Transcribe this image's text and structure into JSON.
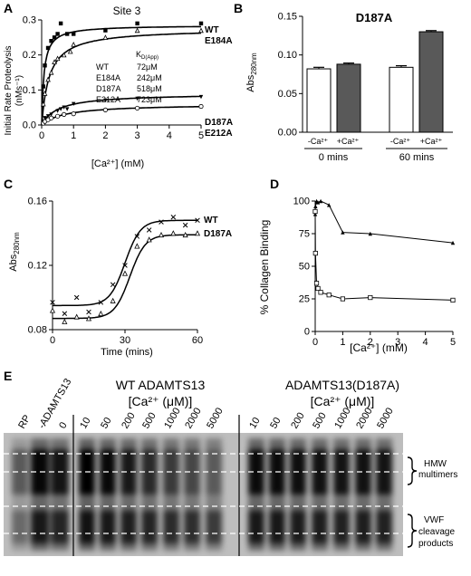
{
  "panels": {
    "A": {
      "label": "A",
      "title": "Site 3",
      "ylabel": "Initial Rate Proteolysis",
      "ylabel2": "(nMs⁻¹)",
      "xlabel": "[Ca²⁺] (mM)",
      "kd_header": "K",
      "kd_header_sub": "D(App)",
      "kd_table": [
        {
          "name": "WT",
          "value": "72μM"
        },
        {
          "name": "E184A",
          "value": "242μM"
        },
        {
          "name": "D187A",
          "value": "518μM"
        },
        {
          "name": "E212A",
          "value": "723μM"
        }
      ],
      "curve_labels": [
        "WT",
        "E184A",
        "D187A",
        "E212A"
      ]
    },
    "B": {
      "label": "B",
      "title": "D187A",
      "ylabel": "Abs",
      "ylabel_sub": "280nm",
      "cond_minus": "-Ca²⁺",
      "cond_plus": "+Ca²⁺",
      "groups": [
        "0 mins",
        "60 mins"
      ]
    },
    "C": {
      "label": "C",
      "ylabel": "Abs",
      "ylabel_sub": "280nm",
      "xlabel": "Time (mins)",
      "legend": [
        "WT",
        "D187A"
      ]
    },
    "D": {
      "label": "D",
      "ylabel": "% Collagen Binding",
      "xlabel": "[Ca²⁺] (mM)"
    },
    "E": {
      "label": "E",
      "lane_rp": "RP",
      "lane_minus": "-ADAMTS13",
      "lane_zero": "0",
      "wt_title": "WT ADAMTS13",
      "wt_sub": "[Ca²⁺ (μM)]",
      "mut_title": "ADAMTS13(D187A)",
      "mut_sub": "[Ca²⁺ (μM)]",
      "concentrations": [
        "10",
        "50",
        "200",
        "500",
        "1000",
        "2000",
        "5000"
      ],
      "hmw": [
        "HMW",
        "multimers"
      ],
      "cleavage": [
        "VWF",
        "cleavage",
        "products"
      ]
    }
  },
  "chart_data": [
    {
      "panel": "A",
      "type": "scatter",
      "title": "Site 3",
      "xlabel": "[Ca²⁺] (mM)",
      "ylabel": "Initial Rate Proteolysis (nMs⁻¹)",
      "xlim": [
        0,
        5
      ],
      "ylim": [
        0,
        0.3
      ],
      "xticks": [
        0,
        1,
        2,
        3,
        4,
        5
      ],
      "yticks": [
        0.0,
        0.1,
        0.2,
        0.3
      ],
      "series": [
        {
          "name": "WT",
          "marker": "square",
          "vmax": 0.285,
          "kd": 0.072,
          "x": [
            0.05,
            0.1,
            0.2,
            0.3,
            0.4,
            0.5,
            0.6,
            0.8,
            1.0,
            2.0,
            3.0,
            5.0
          ],
          "y": [
            0.11,
            0.17,
            0.22,
            0.24,
            0.25,
            0.26,
            0.29,
            0.26,
            0.26,
            0.27,
            0.29,
            0.29
          ]
        },
        {
          "name": "E184A",
          "marker": "triangle-open",
          "vmax": 0.275,
          "kd": 0.242,
          "x": [
            0.05,
            0.1,
            0.2,
            0.3,
            0.4,
            0.5,
            0.7,
            0.9,
            1.0,
            2.0,
            3.0,
            5.0
          ],
          "y": [
            0.06,
            0.09,
            0.13,
            0.15,
            0.18,
            0.19,
            0.2,
            0.21,
            0.23,
            0.25,
            0.27,
            0.27
          ]
        },
        {
          "name": "D187A",
          "marker": "triangle-down",
          "vmax": 0.09,
          "kd": 0.518,
          "x": [
            0.05,
            0.1,
            0.2,
            0.3,
            0.5,
            0.6,
            0.7,
            0.8,
            1.0,
            2.0,
            3.0,
            5.0
          ],
          "y": [
            0.01,
            0.02,
            0.025,
            0.03,
            0.04,
            0.045,
            0.05,
            0.045,
            0.06,
            0.07,
            0.075,
            0.08
          ]
        },
        {
          "name": "E212A",
          "marker": "circle-open",
          "vmax": 0.06,
          "kd": 0.723,
          "x": [
            0.05,
            0.1,
            0.2,
            0.3,
            0.5,
            0.7,
            1.0,
            2.0,
            3.0,
            5.0
          ],
          "y": [
            0.005,
            0.01,
            0.015,
            0.02,
            0.025,
            0.03,
            0.032,
            0.043,
            0.048,
            0.053
          ]
        }
      ]
    },
    {
      "panel": "B",
      "type": "bar",
      "title": "D187A",
      "ylabel": "Abs280nm",
      "ylim": [
        0.0,
        0.15
      ],
      "yticks": [
        0.0,
        0.05,
        0.1,
        0.15
      ],
      "categories": [
        "0 mins -Ca²⁺",
        "0 mins +Ca²⁺",
        "60 mins -Ca²⁺",
        "60 mins +Ca²⁺"
      ],
      "values": [
        0.082,
        0.088,
        0.084,
        0.13
      ],
      "errors": [
        0.002,
        0.0015,
        0.002,
        0.0015
      ],
      "fills": [
        "#ffffff",
        "#595959",
        "#ffffff",
        "#595959"
      ]
    },
    {
      "panel": "C",
      "type": "scatter",
      "xlabel": "Time (mins)",
      "ylabel": "Abs280nm",
      "xlim": [
        0,
        60
      ],
      "ylim": [
        0.08,
        0.16
      ],
      "xticks": [
        0,
        30,
        60
      ],
      "yticks": [
        0.08,
        0.12,
        0.16
      ],
      "series": [
        {
          "name": "WT",
          "marker": "x",
          "bottom": 0.095,
          "top": 0.148,
          "mid": 30,
          "slope": 3.2,
          "x": [
            0,
            5,
            10,
            15,
            20,
            25,
            30,
            35,
            40,
            45,
            50,
            55,
            60
          ],
          "y": [
            0.097,
            0.09,
            0.1,
            0.091,
            0.097,
            0.108,
            0.12,
            0.138,
            0.142,
            0.147,
            0.15,
            0.145,
            0.148
          ]
        },
        {
          "name": "D187A",
          "marker": "triangle-open",
          "bottom": 0.087,
          "top": 0.139,
          "mid": 32,
          "slope": 3.2,
          "x": [
            0,
            5,
            10,
            15,
            20,
            25,
            30,
            35,
            40,
            45,
            50,
            55,
            60
          ],
          "y": [
            0.092,
            0.085,
            0.088,
            0.087,
            0.09,
            0.098,
            0.115,
            0.132,
            0.136,
            0.139,
            0.14,
            0.139,
            0.14
          ]
        }
      ]
    },
    {
      "panel": "D",
      "type": "line",
      "xlabel": "[Ca²⁺] (mM)",
      "ylabel": "% Collagen Binding",
      "xlim": [
        0,
        5
      ],
      "ylim": [
        0,
        100
      ],
      "xticks": [
        0,
        1,
        2,
        3,
        4,
        5
      ],
      "yticks": [
        0,
        25,
        50,
        75,
        100
      ],
      "series": [
        {
          "name": "",
          "marker": "triangle",
          "x": [
            0.0,
            0.01,
            0.05,
            0.1,
            0.2,
            0.5,
            1.0,
            2.0,
            5.0
          ],
          "y": [
            90,
            96,
            100,
            99,
            100,
            97,
            76,
            75,
            68
          ]
        },
        {
          "name": "",
          "marker": "square-open",
          "x": [
            0.0,
            0.01,
            0.05,
            0.1,
            0.2,
            0.5,
            1.0,
            2.0,
            5.0
          ],
          "y": [
            92,
            60,
            37,
            33,
            30,
            28,
            25,
            26,
            24
          ]
        }
      ]
    }
  ],
  "gel": {
    "bg": "#bdbdbd",
    "left_lanes": [
      0.35,
      0.85,
      0.75,
      0.7
    ],
    "wt_lanes": [
      0.9,
      0.85,
      0.8,
      0.75,
      0.7,
      0.68,
      0.6
    ],
    "mut_lanes": [
      0.85,
      0.85,
      0.82,
      0.8,
      0.78,
      0.8,
      0.78
    ]
  }
}
